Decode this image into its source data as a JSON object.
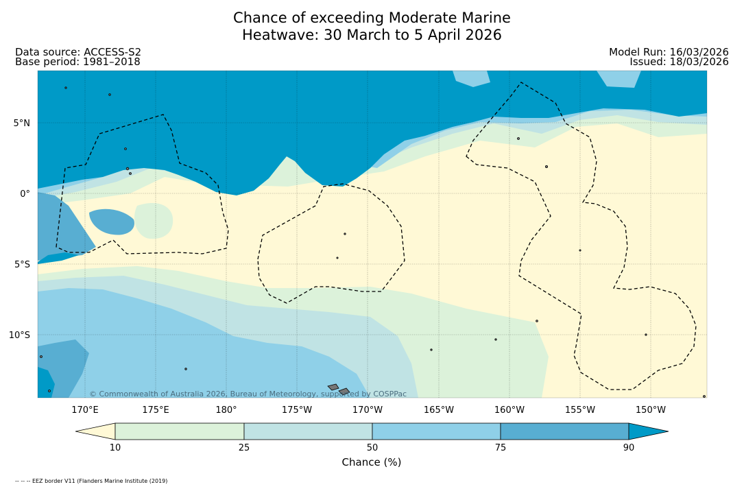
{
  "title_line1": "Chance of exceeding Moderate Marine",
  "title_line2": "Heatwave: 30 March to 5 April 2026",
  "data_source": "Data source: ACCESS-S2",
  "base_period": "Base period: 1981–2018",
  "model_run": "Model Run: 16/03/2026",
  "issued": "Issued: 18/03/2026",
  "lat_labels": [
    "5°N",
    "0°",
    "5°S",
    "10°S"
  ],
  "lon_labels": [
    "170°E",
    "175°E",
    "180°",
    "175°W",
    "170°W",
    "165°W",
    "160°W",
    "155°W",
    "150°W"
  ],
  "copyright": "© Commonwealth of Australia 2026, Bureau of Meteorology, supported by COSPPac",
  "colorbar": {
    "title": "Chance (%)",
    "ticks": [
      "10",
      "25",
      "50",
      "75",
      "90"
    ],
    "colors": {
      "below_10": "#fff9d6",
      "c10_25": "#dcf2da",
      "c25_50": "#c0e3e4",
      "c50_75": "#8fd0e8",
      "c75_90": "#58aed2",
      "above_90": "#009ac7"
    }
  },
  "footnote": "-- -- -- EEZ border V11 (Flanders Marine Institute (2019)"
}
